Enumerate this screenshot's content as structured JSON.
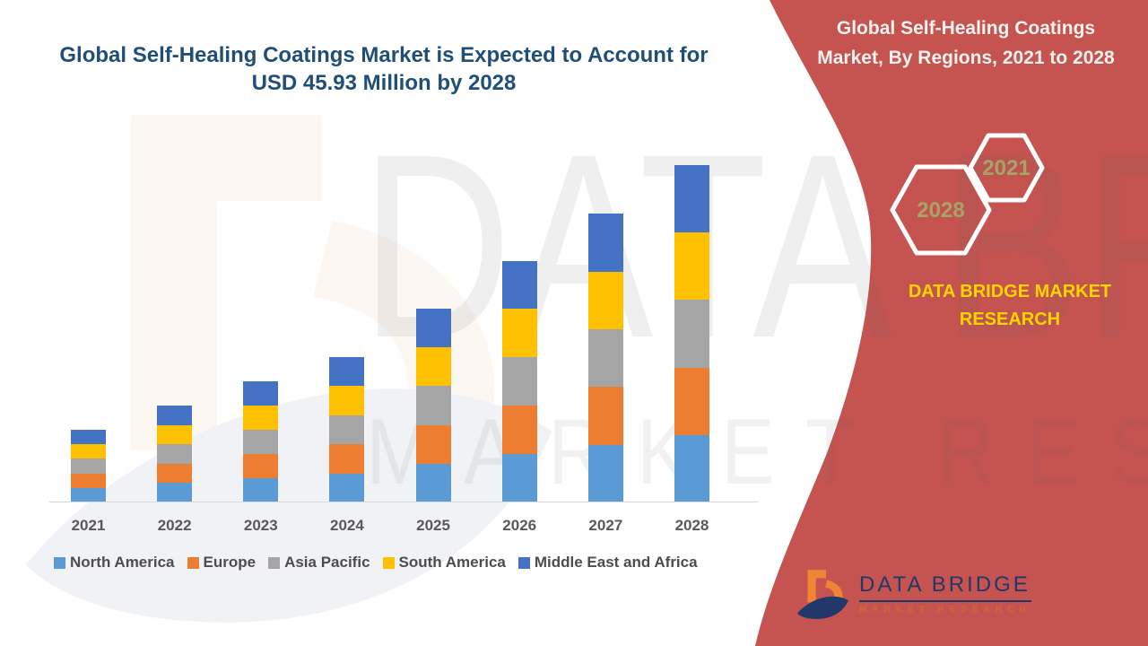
{
  "page": {
    "title_line1": "Global Self-Healing Coatings Market is Expected to Account for",
    "title_line2": "USD 45.93 Million by 2028",
    "title_color": "#1F4E79"
  },
  "side_panel": {
    "background_color": "#C5534F",
    "title_line1": "Global Self-Healing Coatings",
    "title_line2": "Market,  By Regions, 2021 to 2028",
    "hexagon_back_label": "2028",
    "hexagon_front_label": "2021",
    "hexagon_label_color": "#A9A464",
    "brand_line1": "DATA BRIDGE MARKET",
    "brand_line2": "RESEARCH",
    "brand_color": "#FFD500"
  },
  "watermark": {
    "line1": "DATA BRIDGE",
    "line2": "MARKET RESEARCH"
  },
  "footer_logo": {
    "name": "DATA BRIDGE",
    "subtitle": "MARKET RESEARCH"
  },
  "chart_data": {
    "type": "bar",
    "stacked": true,
    "title": "Global Self-Healing Coatings Market, By Regions, 2021 to 2028",
    "unit": "USD Million",
    "categories": [
      "2021",
      "2022",
      "2023",
      "2024",
      "2025",
      "2026",
      "2027",
      "2028"
    ],
    "series": [
      {
        "name": "North America",
        "color": "#5B9BD5",
        "values": [
          1.98,
          2.64,
          3.3,
          3.96,
          5.28,
          6.58,
          7.86,
          9.19
        ]
      },
      {
        "name": "Europe",
        "color": "#ED7D31",
        "values": [
          1.98,
          2.64,
          3.3,
          3.96,
          5.28,
          6.58,
          7.86,
          9.18
        ]
      },
      {
        "name": "Asia Pacific",
        "color": "#A5A5A5",
        "values": [
          1.98,
          2.64,
          3.3,
          3.96,
          5.28,
          6.58,
          7.86,
          9.19
        ]
      },
      {
        "name": "South America",
        "color": "#FFC000",
        "values": [
          1.98,
          2.64,
          3.3,
          3.96,
          5.28,
          6.58,
          7.86,
          9.18
        ]
      },
      {
        "name": "Middle East and Africa",
        "color": "#4472C4",
        "values": [
          1.98,
          2.64,
          3.3,
          3.96,
          5.28,
          6.58,
          7.87,
          9.19
        ]
      }
    ],
    "totals": [
      9.9,
      13.2,
      16.5,
      19.8,
      26.4,
      32.9,
      39.31,
      45.93
    ],
    "ylim": [
      0,
      46
    ],
    "gridlines": false,
    "y_axis_visible": false,
    "legend_position": "bottom"
  }
}
